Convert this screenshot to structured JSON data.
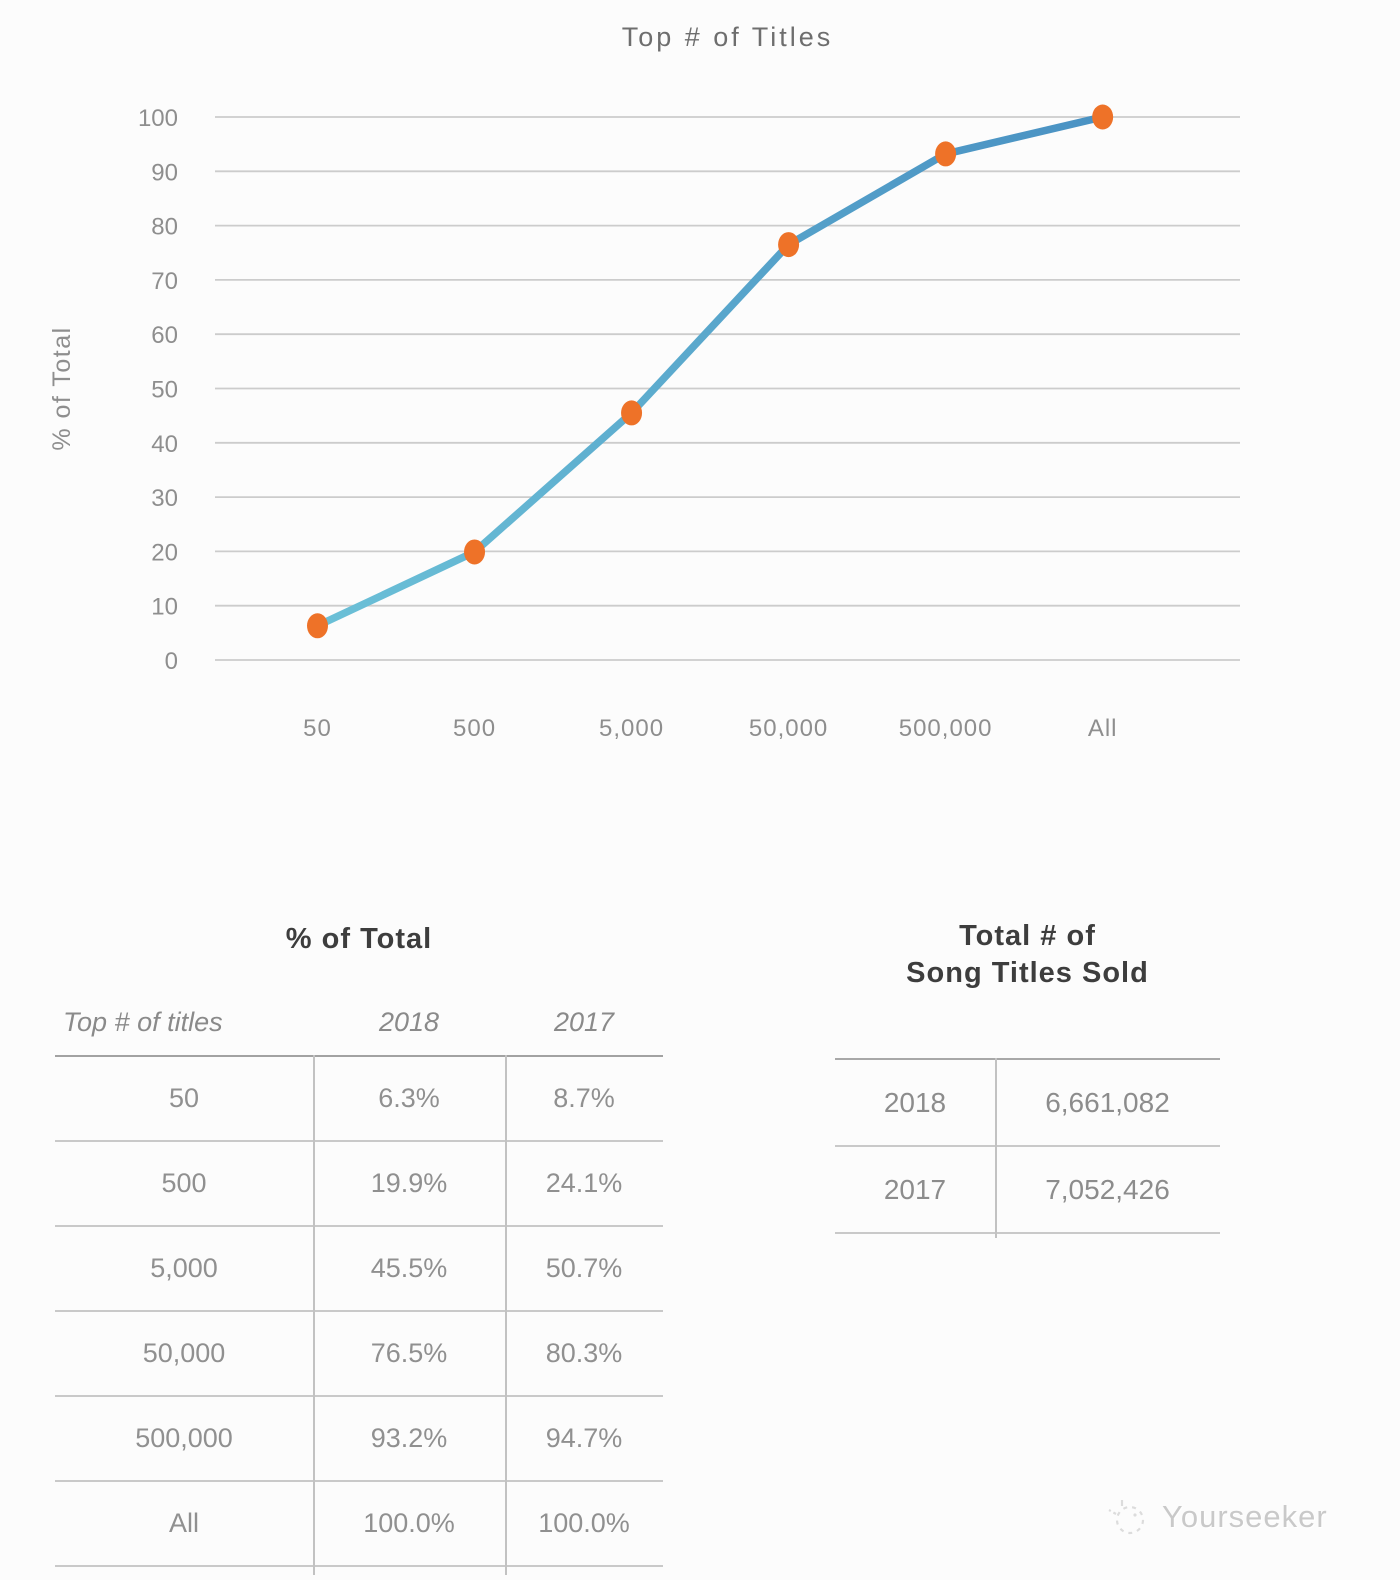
{
  "chart_data": {
    "type": "line",
    "title": "Top # of Titles",
    "xlabel": "",
    "ylabel": "% of Total",
    "categories": [
      "50",
      "500",
      "5,000",
      "50,000",
      "500,000",
      "All"
    ],
    "series": [
      {
        "name": "2018",
        "values": [
          6.3,
          19.9,
          45.5,
          76.5,
          93.2,
          100.0
        ]
      }
    ],
    "ylim": [
      0,
      100
    ],
    "y_ticks": [
      0,
      10,
      20,
      30,
      40,
      50,
      60,
      70,
      80,
      90,
      100
    ],
    "grid": true,
    "legend": false,
    "grid_color": "#cccccc",
    "axis_text_color": "#8e8e8e",
    "line_gradient_start": "#6bc0d7",
    "line_gradient_end": "#4a92c3",
    "marker_color": "#ee7228"
  },
  "tables": {
    "percent_table": {
      "title": "% of Total",
      "columns": [
        "Top # of titles",
        "2018",
        "2017"
      ],
      "rows": [
        {
          "label": "50",
          "y2018": "6.3%",
          "y2017": "8.7%"
        },
        {
          "label": "500",
          "y2018": "19.9%",
          "y2017": "24.1%"
        },
        {
          "label": "5,000",
          "y2018": "45.5%",
          "y2017": "50.7%"
        },
        {
          "label": "50,000",
          "y2018": "76.5%",
          "y2017": "80.3%"
        },
        {
          "label": "500,000",
          "y2018": "93.2%",
          "y2017": "94.7%"
        },
        {
          "label": "All",
          "y2018": "100.0%",
          "y2017": "100.0%"
        }
      ]
    },
    "totals_table": {
      "title_line1": "Total # of",
      "title_line2": "Song Titles Sold",
      "rows": [
        {
          "year": "2018",
          "value": "6,661,082"
        },
        {
          "year": "2017",
          "value": "7,052,426"
        }
      ]
    }
  },
  "watermark": {
    "label": "Yourseeker"
  },
  "colors": {
    "background": "#fcfcfc",
    "chart_title": "#6e6e6e",
    "table_title": "#3d3d3d",
    "table_text": "#909090",
    "gridline": "#cccccc",
    "line_start": "#6bc0d7",
    "line_end": "#4a92c3",
    "marker": "#ee7228",
    "watermark": "#c9c9c9"
  }
}
